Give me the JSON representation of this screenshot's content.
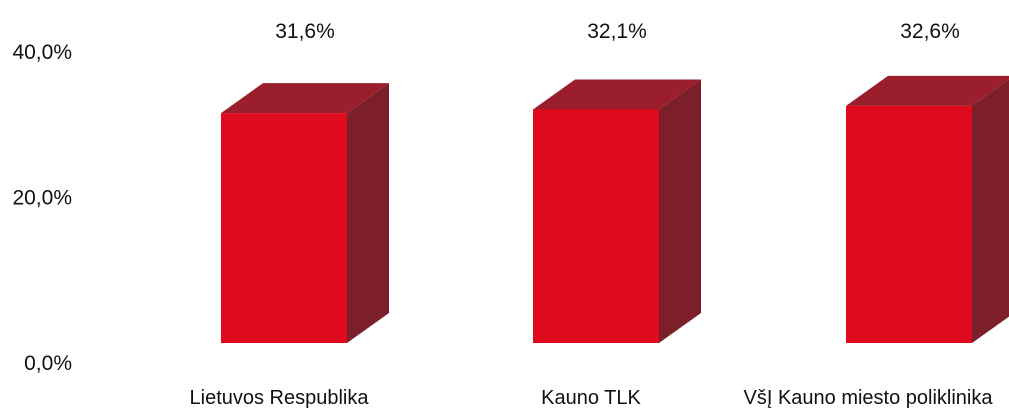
{
  "chart_data": {
    "type": "bar",
    "categories": [
      "Lietuvos Respublika",
      "Kauno TLK",
      "VšĮ Kauno miesto poliklinika"
    ],
    "values": [
      31.6,
      32.1,
      32.6
    ],
    "data_labels": [
      "31,6%",
      "32,1%",
      "32,6%"
    ],
    "ylim": [
      0,
      40
    ],
    "y_ticks": [
      {
        "value": 0,
        "label": "0,0%"
      },
      {
        "value": 20,
        "label": "20,0%"
      },
      {
        "value": 40,
        "label": "40,0%"
      }
    ],
    "grid": false,
    "legend": "none",
    "style": "3d-column",
    "colors": {
      "front": "#e00a1e",
      "side": "#7d1f2a",
      "top": "#9a1e2c"
    }
  }
}
